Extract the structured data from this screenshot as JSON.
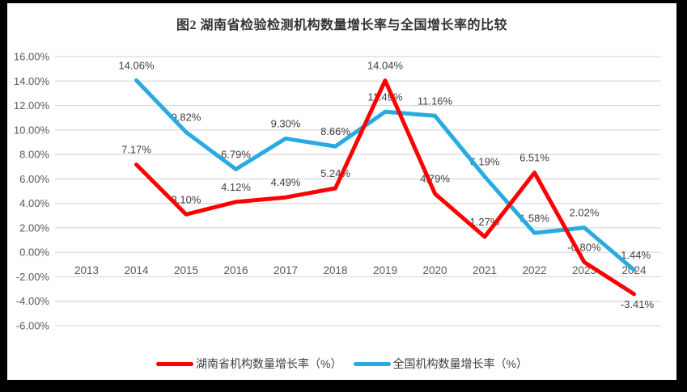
{
  "frame": {
    "border_color": "#000000",
    "canvas_color": "#FFFFFF"
  },
  "chart_data": {
    "type": "line",
    "title": "图2 湖南省检验检测机构数量增长率与全国增长率的比较",
    "xlabel": "",
    "ylabel": "",
    "categories": [
      "2013",
      "2014",
      "2015",
      "2016",
      "2017",
      "2018",
      "2019",
      "2020",
      "2021",
      "2022",
      "2023",
      "2024"
    ],
    "series": [
      {
        "name": "湖南省机构数量增长率（%）",
        "color": "#FF0000",
        "values": [
          null,
          7.17,
          3.1,
          4.12,
          4.49,
          5.24,
          14.04,
          4.79,
          1.27,
          6.51,
          -0.8,
          -3.41
        ],
        "labels": [
          "",
          "7.17%",
          "3.10%",
          "4.12%",
          "4.49%",
          "5.24%",
          "14.04%",
          "4.79%",
          "1.27%",
          "6.51%",
          "-0.80%",
          "-3.41%"
        ],
        "label_offsets": {
          "11": [
            4,
            17
          ]
        }
      },
      {
        "name": "全国机构数量增长率（%）",
        "color": "#29ABE2",
        "values": [
          null,
          14.06,
          9.82,
          6.79,
          9.3,
          8.66,
          11.49,
          11.16,
          6.19,
          1.58,
          2.02,
          -1.44
        ],
        "labels": [
          "",
          "14.06%",
          "9.82%",
          "6.79%",
          "9.30%",
          "8.66%",
          "11.49%",
          "11.16%",
          "6.19%",
          "1.58%",
          "2.02%",
          "-1.44%"
        ],
        "label_offsets": {}
      }
    ],
    "ylim": [
      -6,
      16
    ],
    "ytick_step": 2,
    "ytick_labels": [
      "16.00%",
      "14.00%",
      "12.00%",
      "10.00%",
      "8.00%",
      "6.00%",
      "4.00%",
      "2.00%",
      "0.00%",
      "-2.00%",
      "-4.00%",
      "-6.00%"
    ],
    "grid": true,
    "legend_position": "bottom",
    "colors": {
      "gridline": "#D9D9D9",
      "axis_tick_text": "#595959",
      "data_label_text": "#404040",
      "title_text": "#333333",
      "legend_text": "#404040"
    }
  }
}
